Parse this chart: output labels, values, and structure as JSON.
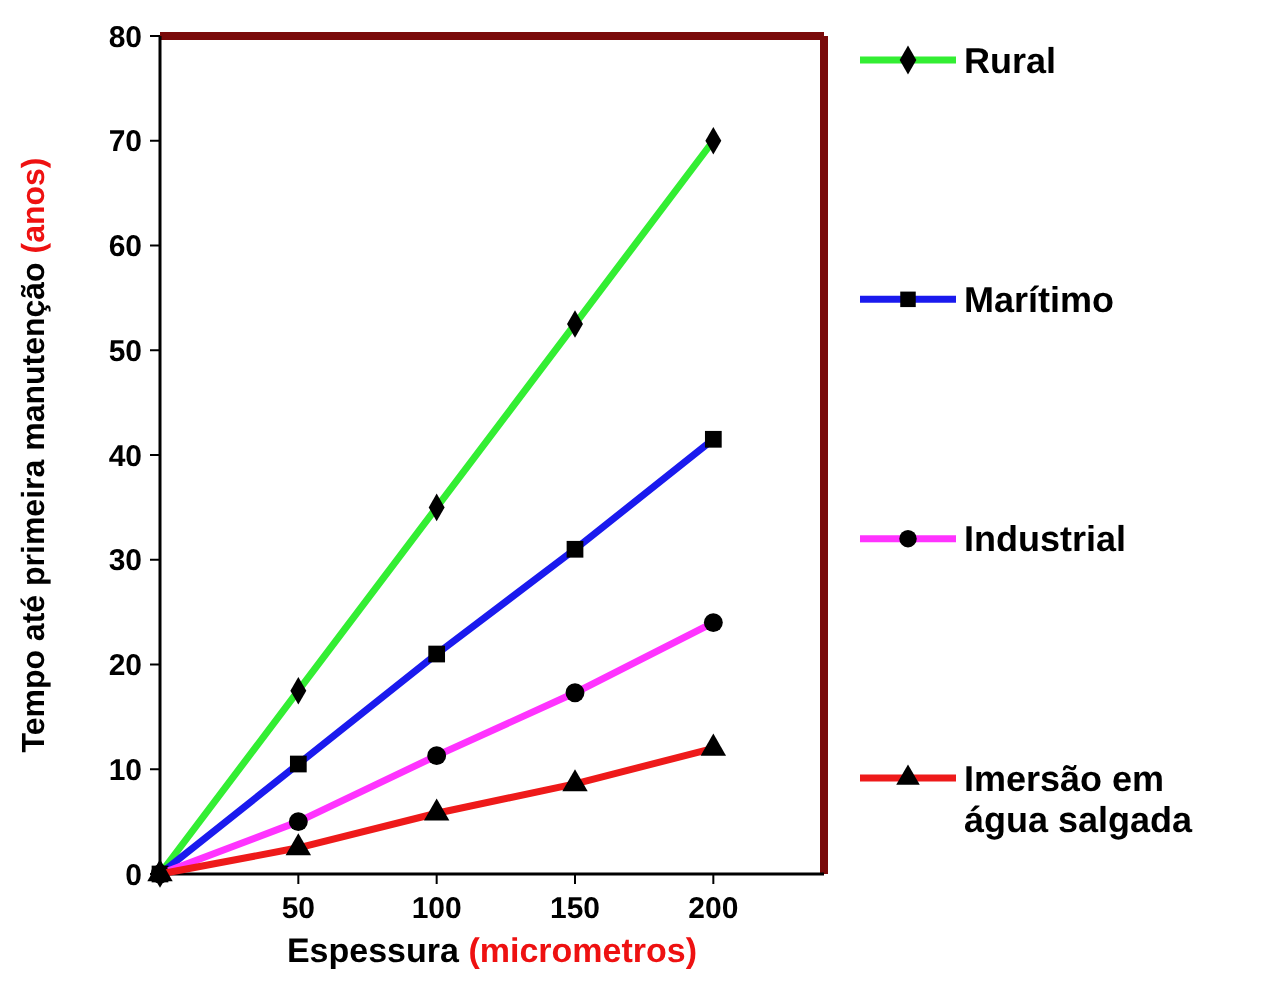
{
  "chart_data": {
    "type": "line",
    "xlabel": "Espessura (micrometros)",
    "ylabel": "Tempo até primeira manutenção (anos)",
    "x": [
      0,
      50,
      100,
      150,
      200
    ],
    "xlim": [
      0,
      240
    ],
    "xticks": [
      50,
      100,
      150,
      200
    ],
    "ylim": [
      0,
      80
    ],
    "yticks": [
      0,
      10,
      20,
      30,
      40,
      50,
      60,
      70,
      80
    ],
    "grid": false,
    "legend": "right",
    "line_style": "solid",
    "series": [
      {
        "name": "Rural",
        "color": "#33ee33",
        "marker": "diamond",
        "values": [
          0,
          17.5,
          35,
          52.5,
          70
        ]
      },
      {
        "name": "Marítimo",
        "color": "#1a1aee",
        "marker": "square",
        "values": [
          0,
          10.5,
          21,
          31,
          41.5
        ]
      },
      {
        "name": "Industrial",
        "color": "#ff33ff",
        "marker": "circle",
        "values": [
          0,
          5,
          11.3,
          17.3,
          24
        ]
      },
      {
        "name": "Imersão em água salgada",
        "color": "#ee1a1a",
        "marker": "triangle",
        "values": [
          0,
          2.5,
          5.8,
          8.6,
          12
        ]
      }
    ]
  }
}
